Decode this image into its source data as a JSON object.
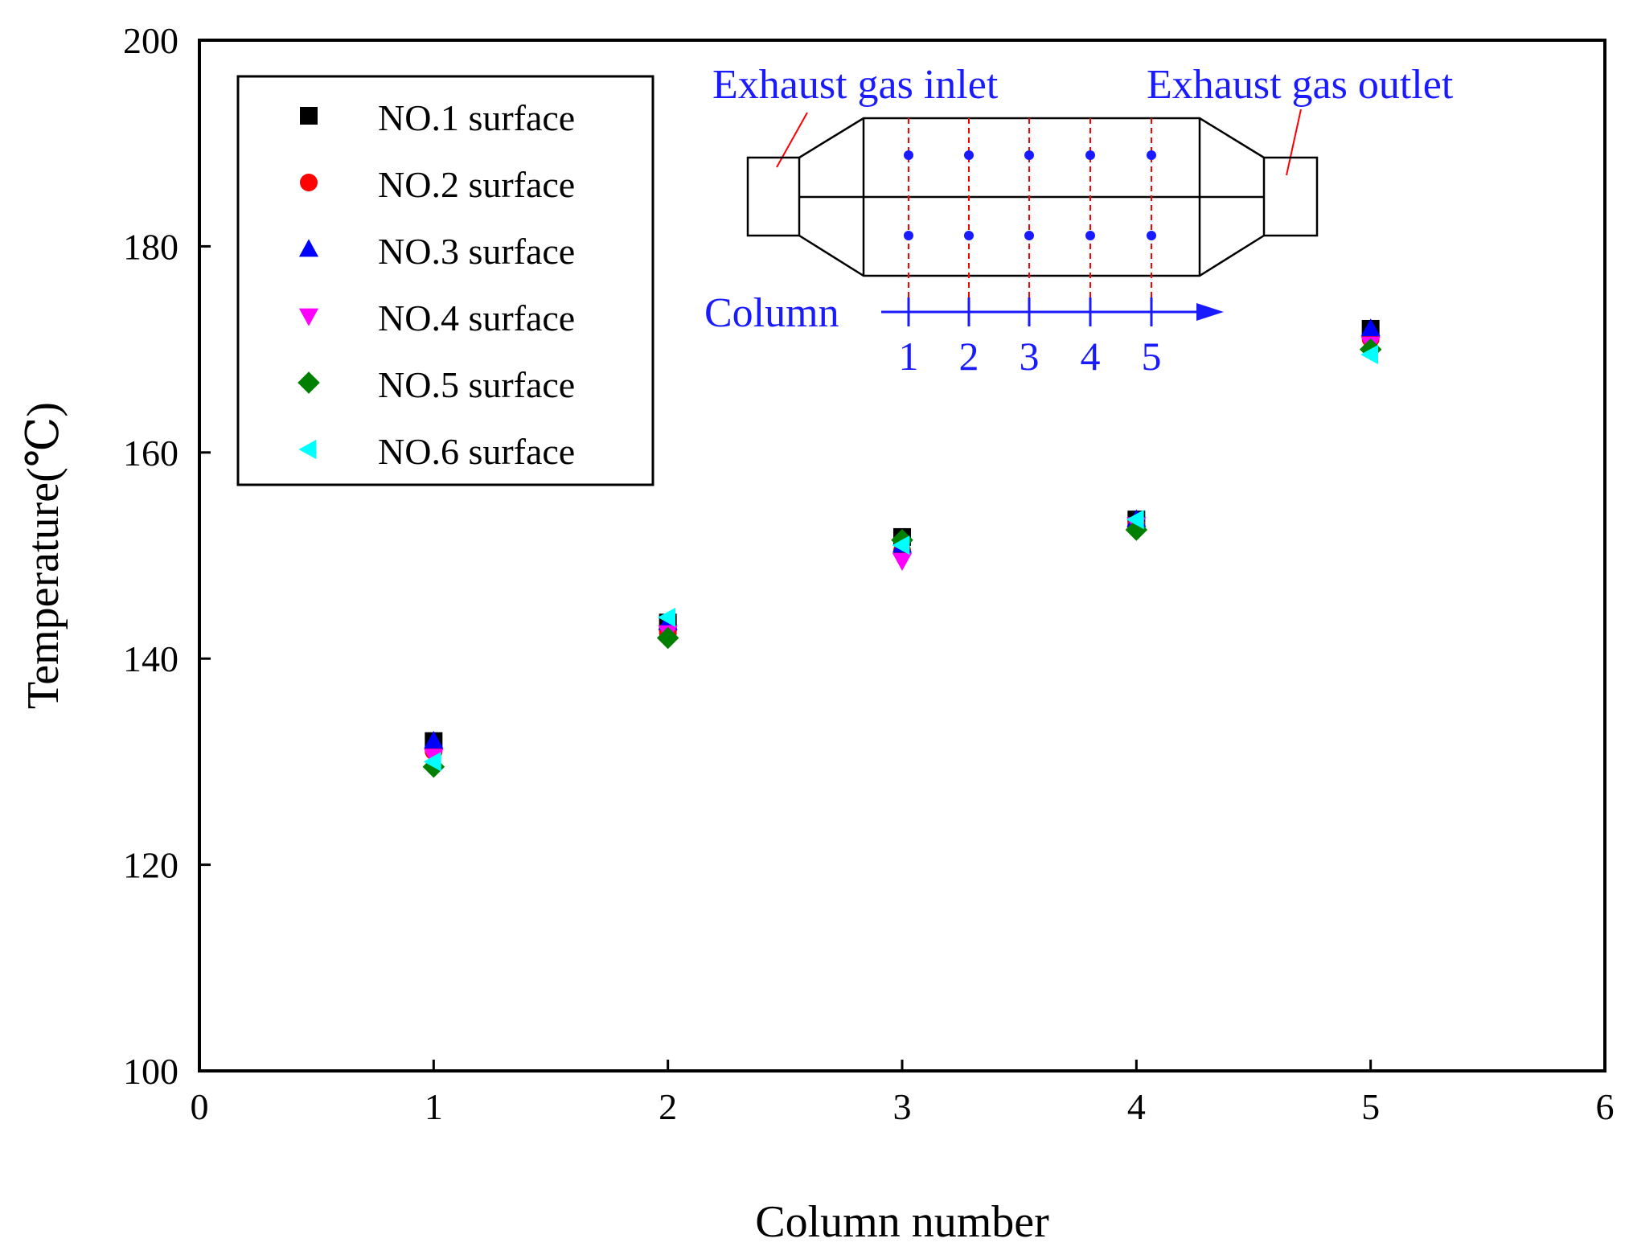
{
  "chart_data": {
    "type": "scatter",
    "title": "",
    "xlabel": "Column number",
    "ylabel": "Temperature(℃)",
    "xlim": [
      0,
      6
    ],
    "ylim": [
      100,
      200
    ],
    "x_ticks": [
      "0",
      "1",
      "2",
      "3",
      "4",
      "5",
      "6"
    ],
    "y_ticks": [
      "100",
      "120",
      "140",
      "160",
      "180",
      "200"
    ],
    "grid": false,
    "legend_position": "top-left",
    "series": [
      {
        "name": "NO.1 surface",
        "marker": "square",
        "color": "#000000",
        "x": [
          1,
          2,
          3,
          4,
          5
        ],
        "values": [
          132,
          143.5,
          151.8,
          153.5,
          172
        ]
      },
      {
        "name": "NO.2 surface",
        "marker": "circle",
        "color": "#ff0000",
        "x": [
          1,
          2,
          3,
          4,
          5
        ],
        "values": [
          131,
          142.5,
          150.5,
          153,
          171
        ]
      },
      {
        "name": "NO.3 surface",
        "marker": "triangle-up",
        "color": "#0000ff",
        "x": [
          1,
          2,
          3,
          4,
          5
        ],
        "values": [
          132,
          143.5,
          151,
          153.5,
          172
        ]
      },
      {
        "name": "NO.4 surface",
        "marker": "triangle-down",
        "color": "#ff00ff",
        "x": [
          1,
          2,
          3,
          4,
          5
        ],
        "values": [
          130.5,
          142.5,
          149.5,
          153,
          170.5
        ]
      },
      {
        "name": "NO.5 surface",
        "marker": "diamond",
        "color": "#007f00",
        "x": [
          1,
          2,
          3,
          4,
          5
        ],
        "values": [
          129.5,
          142,
          151.5,
          152.5,
          170
        ]
      },
      {
        "name": "NO.6 surface",
        "marker": "triangle-left",
        "color": "#00ffff",
        "x": [
          1,
          2,
          3,
          4,
          5
        ],
        "values": [
          130,
          144,
          151,
          153.5,
          169.5
        ]
      }
    ],
    "inset": {
      "inlet_label": "Exhaust gas inlet",
      "outlet_label": "Exhaust gas outlet",
      "column_label": "Column",
      "column_numbers": [
        "1",
        "2",
        "3",
        "4",
        "5"
      ],
      "colors": {
        "text": "#1a1aff",
        "dashed": "#ff0000",
        "outline": "#000000"
      }
    }
  }
}
